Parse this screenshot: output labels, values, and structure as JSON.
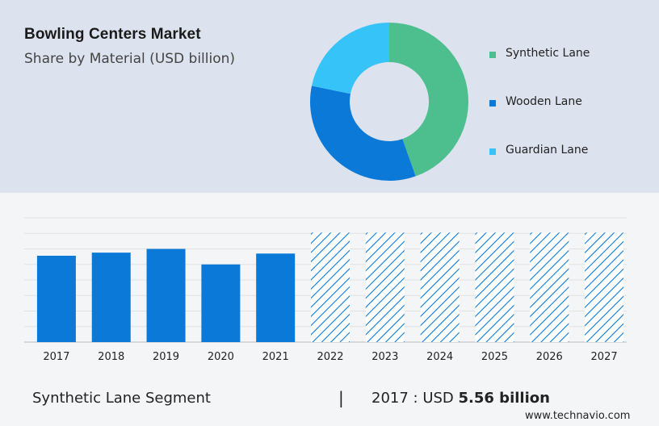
{
  "header": {
    "title": "Bowling Centers Market",
    "subtitle": "Share by Material (USD billion)"
  },
  "donut_chart": {
    "type": "pie",
    "slices": [
      {
        "name": "Synthetic Lane",
        "share": 0.446,
        "color": "#4dbf8f"
      },
      {
        "name": "Wooden Lane",
        "share": 0.336,
        "color": "#0a79d8"
      },
      {
        "name": "Guardian Lane",
        "share": 0.218,
        "color": "#36c3f7"
      }
    ]
  },
  "chart_data": {
    "type": "bar",
    "categories": [
      "2017",
      "2018",
      "2019",
      "2020",
      "2021",
      "2022",
      "2023",
      "2024",
      "2025",
      "2026",
      "2027"
    ],
    "values": [
      5.56,
      5.76,
      6.0,
      5.0,
      5.7,
      7.05,
      7.05,
      7.05,
      7.05,
      7.05,
      7.05
    ],
    "forecast_from": "2022",
    "ylim": [
      0,
      8
    ],
    "grid": true,
    "bar_color": "#0a79d8",
    "title": "",
    "xlabel": "",
    "ylabel": ""
  },
  "footer": {
    "segment_label": "Synthetic Lane Segment",
    "separator": "|",
    "year_prefix": "2017 : USD ",
    "value_text": "5.56 billion"
  },
  "brand": "www.technavio.com"
}
